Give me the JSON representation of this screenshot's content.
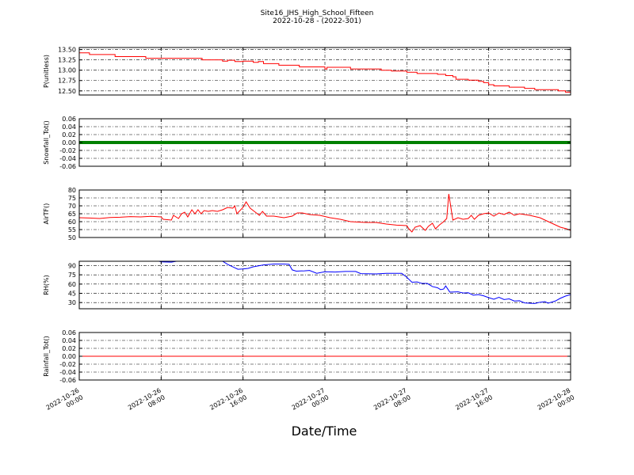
{
  "chart_data": {
    "type": "line",
    "title": "Site16_JHS_High_School_Fifteen",
    "subtitle": "2022-10-28 - (2022-301)",
    "xlabel": "Date/Time",
    "x_ticks": [
      {
        "line1": "2022-10-26",
        "line2": "00:00",
        "hour": 0
      },
      {
        "line1": "2022-10-26",
        "line2": "08:00",
        "hour": 8
      },
      {
        "line1": "2022-10-26",
        "line2": "16:00",
        "hour": 16
      },
      {
        "line1": "2022-10-27",
        "line2": "00:00",
        "hour": 24
      },
      {
        "line1": "2022-10-27",
        "line2": "08:00",
        "hour": 32
      },
      {
        "line1": "2022-10-27",
        "line2": "16:00",
        "hour": 40
      },
      {
        "line1": "2022-10-28",
        "line2": "00:00",
        "hour": 48
      }
    ],
    "xlim_hours": [
      0,
      48
    ],
    "grid": true,
    "panels": [
      {
        "ylabel": "P(unitless)",
        "ylim": [
          12.4,
          13.55
        ],
        "yticks": [
          "13.50",
          "13.25",
          "13.00",
          "12.75",
          "12.50"
        ],
        "ytick_values": [
          13.5,
          13.25,
          13.0,
          12.75,
          12.5
        ],
        "color": "#ff0000",
        "style": "step",
        "points": [
          [
            0,
            13.42
          ],
          [
            1,
            13.38
          ],
          [
            3.5,
            13.33
          ],
          [
            6.5,
            13.29
          ],
          [
            12,
            13.25
          ],
          [
            14,
            13.22
          ],
          [
            14.5,
            13.24
          ],
          [
            15.2,
            13.21
          ],
          [
            16,
            13.22
          ],
          [
            17,
            13.19
          ],
          [
            17.5,
            13.21
          ],
          [
            18,
            13.16
          ],
          [
            19.5,
            13.12
          ],
          [
            21,
            13.12
          ],
          [
            21.5,
            13.08
          ],
          [
            23.5,
            13.08
          ],
          [
            24,
            13.03
          ],
          [
            24.2,
            13.07
          ],
          [
            26,
            13.07
          ],
          [
            26.5,
            13.03
          ],
          [
            29.5,
            13.0
          ],
          [
            30.5,
            12.98
          ],
          [
            32,
            12.95
          ],
          [
            33,
            12.92
          ],
          [
            35,
            12.9
          ],
          [
            35.8,
            12.87
          ],
          [
            36.5,
            12.84
          ],
          [
            36.8,
            12.78
          ],
          [
            38,
            12.76
          ],
          [
            39,
            12.73
          ],
          [
            39.5,
            12.7
          ],
          [
            40,
            12.65
          ],
          [
            40.5,
            12.62
          ],
          [
            42,
            12.59
          ],
          [
            43.5,
            12.56
          ],
          [
            44.5,
            12.53
          ],
          [
            46,
            12.53
          ],
          [
            46.8,
            12.5
          ],
          [
            47.5,
            12.47
          ],
          [
            48,
            12.44
          ]
        ]
      },
      {
        "ylabel": "Snowfall_Tot()",
        "ylim": [
          -0.06,
          0.06
        ],
        "yticks": [
          "0.06",
          "0.04",
          "0.02",
          "0.00",
          "-0.02",
          "-0.04",
          "-0.06"
        ],
        "ytick_values": [
          0.06,
          0.04,
          0.02,
          0.0,
          -0.02,
          -0.04,
          -0.06
        ],
        "color": "#008000",
        "style": "thick",
        "points": [
          [
            0,
            0.0
          ],
          [
            48,
            0.0
          ]
        ]
      },
      {
        "ylabel": "AirTF()",
        "ylim": [
          50,
          80
        ],
        "yticks": [
          "80",
          "75",
          "70",
          "65",
          "60",
          "55",
          "50"
        ],
        "ytick_values": [
          80,
          75,
          70,
          65,
          60,
          55,
          50
        ],
        "color": "#ff0000",
        "style": "line",
        "points": [
          [
            0,
            62.5
          ],
          [
            1,
            62.3
          ],
          [
            2,
            62.0
          ],
          [
            3,
            62.6
          ],
          [
            4,
            62.8
          ],
          [
            5,
            63.2
          ],
          [
            6,
            63.0
          ],
          [
            7,
            63.4
          ],
          [
            8,
            63.0
          ],
          [
            8.2,
            61.5
          ],
          [
            9,
            61.0
          ],
          [
            9.2,
            64.0
          ],
          [
            9.7,
            62.0
          ],
          [
            10,
            65.0
          ],
          [
            10.3,
            66.0
          ],
          [
            10.6,
            63.0
          ],
          [
            11,
            67.5
          ],
          [
            11.3,
            65.0
          ],
          [
            11.6,
            67.5
          ],
          [
            11.9,
            65.0
          ],
          [
            12.2,
            67.0
          ],
          [
            12.6,
            66.5
          ],
          [
            13,
            67.0
          ],
          [
            13.5,
            66.5
          ],
          [
            14,
            67.5
          ],
          [
            14.5,
            69.0
          ],
          [
            15,
            68.5
          ],
          [
            15.2,
            70.0
          ],
          [
            15.4,
            65.0
          ],
          [
            16,
            69.0
          ],
          [
            16.3,
            72.5
          ],
          [
            16.7,
            68.5
          ],
          [
            17.2,
            66.0
          ],
          [
            17.6,
            64.0
          ],
          [
            17.9,
            66.5
          ],
          [
            18.3,
            63.5
          ],
          [
            19,
            63.5
          ],
          [
            20,
            62.5
          ],
          [
            20.8,
            63.5
          ],
          [
            21.3,
            65.5
          ],
          [
            21.8,
            65.5
          ],
          [
            22.5,
            64.5
          ],
          [
            23.5,
            64.0
          ],
          [
            24.5,
            62.5
          ],
          [
            25.5,
            61.5
          ],
          [
            26.5,
            60.0
          ],
          [
            28,
            59.5
          ],
          [
            29,
            59.5
          ],
          [
            30,
            58.5
          ],
          [
            31,
            57.8
          ],
          [
            32,
            57.5
          ],
          [
            32.2,
            55.5
          ],
          [
            32.5,
            53.5
          ],
          [
            32.8,
            56.5
          ],
          [
            33.3,
            57.5
          ],
          [
            33.8,
            54.5
          ],
          [
            34.1,
            57.0
          ],
          [
            34.5,
            59.0
          ],
          [
            34.8,
            55.5
          ],
          [
            35.2,
            58.0
          ],
          [
            35.6,
            60.0
          ],
          [
            35.9,
            62.0
          ],
          [
            36.1,
            77.5
          ],
          [
            36.5,
            61.0
          ],
          [
            37,
            62.5
          ],
          [
            37.5,
            61.5
          ],
          [
            38,
            62.0
          ],
          [
            38.3,
            64.0
          ],
          [
            38.6,
            61.5
          ],
          [
            39,
            64.0
          ],
          [
            39.5,
            65.0
          ],
          [
            40,
            65.5
          ],
          [
            40.5,
            63.5
          ],
          [
            41,
            65.5
          ],
          [
            41.5,
            64.5
          ],
          [
            42,
            66.0
          ],
          [
            42.5,
            64.0
          ],
          [
            43,
            65.0
          ],
          [
            44,
            64.0
          ],
          [
            45,
            62.5
          ],
          [
            46,
            59.5
          ],
          [
            47,
            56.5
          ],
          [
            47.6,
            55.5
          ],
          [
            48,
            54.5
          ]
        ]
      },
      {
        "ylabel": "RH(%)",
        "ylim": [
          20,
          97
        ],
        "yticks": [
          "90",
          "75",
          "60",
          "45",
          "30"
        ],
        "ytick_values": [
          90,
          75,
          60,
          45,
          30
        ],
        "color": "#0000ff",
        "style": "line",
        "points": [
          [
            7.8,
            97.0
          ],
          [
            8,
            96.0
          ],
          [
            9,
            95.5
          ],
          [
            9.5,
            97.0
          ],
          [
            14,
            97.0
          ],
          [
            14.5,
            92.0
          ],
          [
            15,
            88.0
          ],
          [
            15.5,
            84.0
          ],
          [
            16,
            84.5
          ],
          [
            16.5,
            85.5
          ],
          [
            17,
            88.0
          ],
          [
            18,
            91.0
          ],
          [
            19,
            92.5
          ],
          [
            20,
            92.5
          ],
          [
            20.5,
            92.0
          ],
          [
            20.8,
            83.0
          ],
          [
            21.2,
            81.0
          ],
          [
            22,
            81.5
          ],
          [
            22.5,
            82.0
          ],
          [
            23.2,
            77.5
          ],
          [
            24,
            80.0
          ],
          [
            25,
            79.5
          ],
          [
            26,
            80.5
          ],
          [
            27,
            80.5
          ],
          [
            27.5,
            77.0
          ],
          [
            29,
            76.5
          ],
          [
            30,
            77.5
          ],
          [
            31,
            77.5
          ],
          [
            31.5,
            77.5
          ],
          [
            32,
            71.0
          ],
          [
            32.5,
            63.0
          ],
          [
            33,
            63.5
          ],
          [
            33.5,
            61.0
          ],
          [
            34,
            61.0
          ],
          [
            34.5,
            56.0
          ],
          [
            35,
            54.0
          ],
          [
            35.3,
            51.0
          ],
          [
            35.6,
            52.0
          ],
          [
            35.8,
            57.0
          ],
          [
            36.2,
            47.0
          ],
          [
            37,
            47.5
          ],
          [
            37.5,
            45.5
          ],
          [
            38,
            46.0
          ],
          [
            38.5,
            42.0
          ],
          [
            39,
            43.0
          ],
          [
            39.5,
            41.0
          ],
          [
            40,
            38.0
          ],
          [
            40.5,
            35.5
          ],
          [
            41,
            38.5
          ],
          [
            41.5,
            35.0
          ],
          [
            42,
            36.0
          ],
          [
            42.5,
            32.5
          ],
          [
            43,
            33.0
          ],
          [
            43.5,
            29.5
          ],
          [
            44,
            29.0
          ],
          [
            44.5,
            28.5
          ],
          [
            45,
            30.5
          ],
          [
            45.5,
            31.5
          ],
          [
            45.8,
            29.0
          ],
          [
            46.5,
            32.5
          ],
          [
            47,
            37.0
          ],
          [
            47.5,
            40.5
          ],
          [
            48,
            43.0
          ]
        ]
      },
      {
        "ylabel": "Rainfall_Tot()",
        "ylim": [
          -0.06,
          0.06
        ],
        "yticks": [
          "0.06",
          "0.04",
          "0.02",
          "0.00",
          "-0.02",
          "-0.04",
          "-0.06"
        ],
        "ytick_values": [
          0.06,
          0.04,
          0.02,
          0.0,
          -0.02,
          -0.04,
          -0.06
        ],
        "color": "#ff0000",
        "style": "line",
        "points": [
          [
            0,
            0.0
          ],
          [
            48,
            0.0
          ]
        ]
      }
    ]
  }
}
